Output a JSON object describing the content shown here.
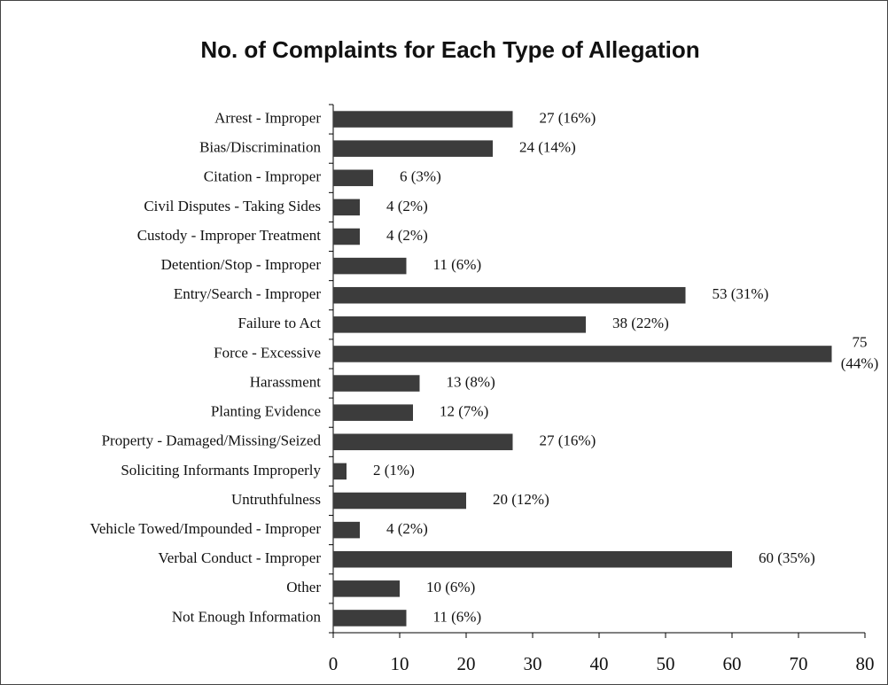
{
  "chart_data": {
    "type": "barh",
    "title": "No. of Complaints for Each Type of Allegation",
    "categories": [
      "Arrest - Improper",
      "Bias/Discrimination",
      "Citation - Improper",
      "Civil Disputes - Taking Sides",
      "Custody - Improper Treatment",
      "Detention/Stop - Improper",
      "Entry/Search - Improper",
      "Failure to Act",
      "Force - Excessive",
      "Harassment",
      "Planting Evidence",
      "Property - Damaged/Missing/Seized",
      "Soliciting Informants Improperly",
      "Untruthfulness",
      "Vehicle Towed/Impounded - Improper",
      "Verbal Conduct - Improper",
      "Other",
      "Not Enough Information"
    ],
    "values": [
      27,
      24,
      6,
      4,
      4,
      11,
      53,
      38,
      75,
      13,
      12,
      27,
      2,
      20,
      4,
      60,
      10,
      11
    ],
    "value_labels": [
      "27 (16%)",
      "24 (14%)",
      "6 (3%)",
      "4 (2%)",
      "4 (2%)",
      "11 (6%)",
      "53 (31%)",
      "38 (22%)",
      "75 (44%)",
      "13 (8%)",
      "12 (7%)",
      "27 (16%)",
      "2 (1%)",
      "20 (12%)",
      "4 (2%)",
      "60 (35%)",
      "10 (6%)",
      "11 (6%)"
    ],
    "color": "#3c3c3c",
    "xlim": [
      0,
      80
    ],
    "xticks": [
      0,
      10,
      20,
      30,
      40,
      50,
      60,
      70,
      80
    ]
  }
}
